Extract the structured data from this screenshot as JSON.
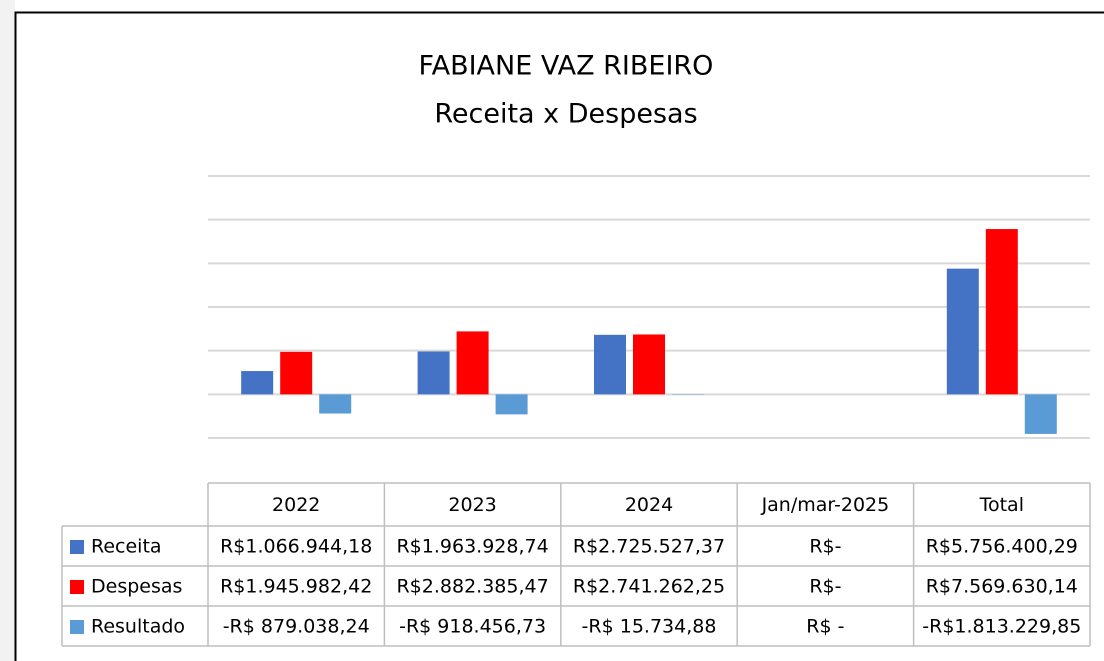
{
  "chart_data": {
    "type": "bar",
    "title": "FABIANE VAZ RIBEIRO",
    "subtitle": "Receita x Despesas",
    "categories": [
      "2022",
      "2023",
      "2024",
      "Jan/mar-2025",
      "Total"
    ],
    "series": [
      {
        "name": "Receita",
        "color": "#4472c4",
        "values": [
          1066944.18,
          1963928.74,
          2725527.37,
          0,
          5756400.29
        ],
        "value_labels": [
          "R$1.066.944,18",
          "R$1.963.928,74",
          "R$2.725.527,37",
          "R$-",
          "R$5.756.400,29"
        ]
      },
      {
        "name": "Despesas",
        "color": "#ff0000",
        "values": [
          1945982.42,
          2882385.47,
          2741262.25,
          0,
          7569630.14
        ],
        "value_labels": [
          "R$1.945.982,42",
          "R$2.882.385,47",
          "R$2.741.262,25",
          "R$-",
          "R$7.569.630,14"
        ]
      },
      {
        "name": "Resultado",
        "color": "#5b9bd5",
        "values": [
          -879038.24,
          -918456.73,
          -15734.88,
          0,
          -1813229.85
        ],
        "value_labels": [
          "-R$ 879.038,24",
          "-R$ 918.456,73",
          "-R$ 15.734,88",
          "R$ -",
          "-R$1.813.229,85"
        ]
      }
    ],
    "ylim": [
      -2000000,
      10000000
    ],
    "yticks": [
      -2000000,
      0,
      2000000,
      4000000,
      6000000,
      8000000,
      10000000
    ],
    "grid": true
  }
}
